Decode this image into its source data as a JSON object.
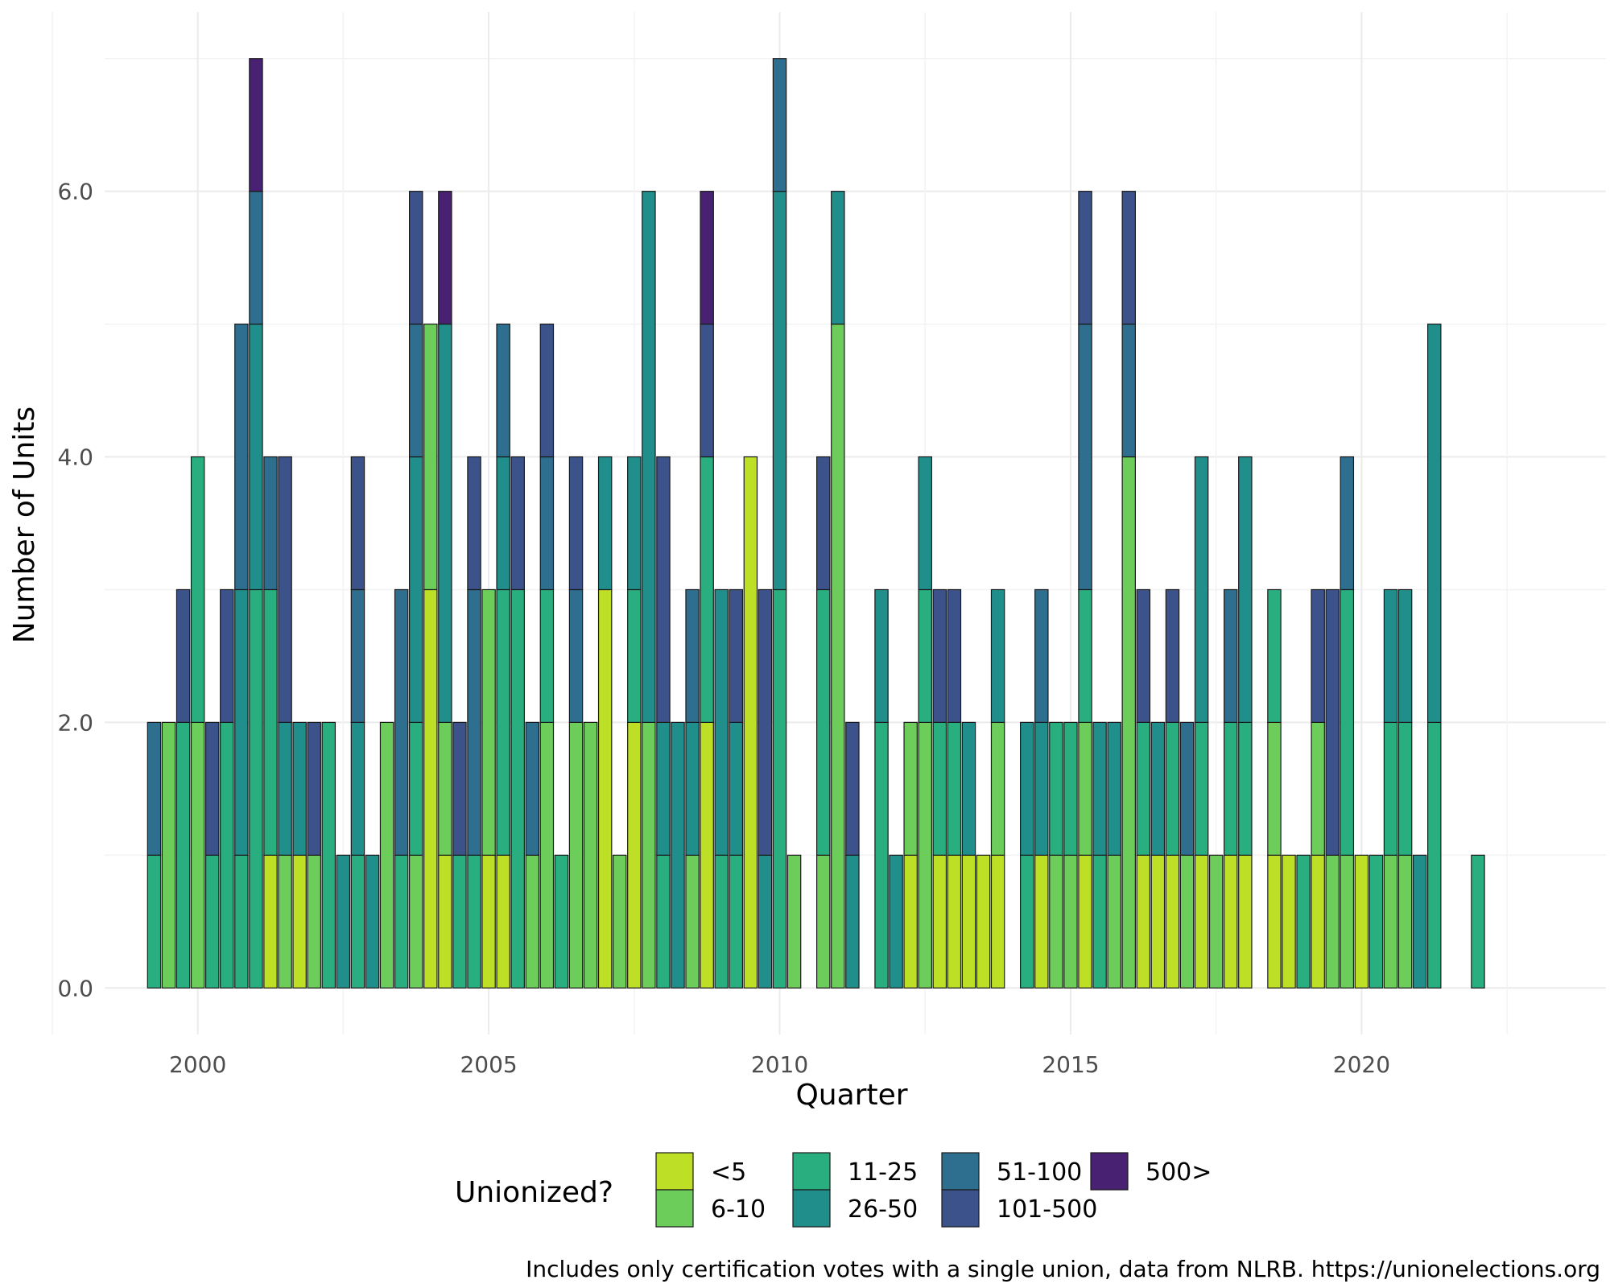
{
  "chart_data": {
    "type": "bar",
    "stacked": true,
    "xlabel": "Quarter",
    "ylabel": "Number of Units",
    "ylim": [
      -0.35,
      7.35
    ],
    "xlim": [
      1998.4,
      2024.2
    ],
    "y_ticks": [
      0,
      2,
      4,
      6
    ],
    "y_tick_labels": [
      "0.0",
      "2.0",
      "4.0",
      "6.0"
    ],
    "x_ticks": [
      2000,
      2005,
      2010,
      2015,
      2020
    ],
    "x_tick_labels": [
      "2000",
      "2005",
      "2010",
      "2015",
      "2020"
    ],
    "grid": true,
    "legend": {
      "title": "Unionized?",
      "placement": "bottom",
      "entries": [
        {
          "key": "lt5",
          "label": "<5",
          "color": "#bddf26"
        },
        {
          "key": "s6_10",
          "label": "6-10",
          "color": "#6ccd5a"
        },
        {
          "key": "s11_25",
          "label": "11-25",
          "color": "#29af7f"
        },
        {
          "key": "s26_50",
          "label": "26-50",
          "color": "#208f8c"
        },
        {
          "key": "s51_100",
          "label": "51-100",
          "color": "#2e6e8e"
        },
        {
          "key": "s101_500",
          "label": "101-500",
          "color": "#3b528b"
        },
        {
          "key": "gt500",
          "label": "500>",
          "color": "#482173"
        }
      ]
    },
    "caption": "Includes only certification votes with a single union, data from NLRB. https://unionelections.org",
    "bars": [
      {
        "x": 1999.25,
        "segments": [
          [
            "s11_25",
            1
          ],
          [
            "s51_100",
            1
          ]
        ]
      },
      {
        "x": 1999.5,
        "segments": [
          [
            "s6_10",
            2
          ]
        ]
      },
      {
        "x": 1999.75,
        "segments": [
          [
            "s11_25",
            2
          ],
          [
            "s101_500",
            1
          ]
        ]
      },
      {
        "x": 2000.0,
        "segments": [
          [
            "s6_10",
            2
          ],
          [
            "s11_25",
            2
          ]
        ]
      },
      {
        "x": 2000.25,
        "segments": [
          [
            "s11_25",
            1
          ],
          [
            "s101_500",
            1
          ]
        ]
      },
      {
        "x": 2000.5,
        "segments": [
          [
            "s11_25",
            2
          ],
          [
            "s101_500",
            1
          ]
        ]
      },
      {
        "x": 2000.75,
        "segments": [
          [
            "s11_25",
            1
          ],
          [
            "s26_50",
            2
          ],
          [
            "s51_100",
            2
          ]
        ]
      },
      {
        "x": 2001.0,
        "segments": [
          [
            "s11_25",
            3
          ],
          [
            "s26_50",
            2
          ],
          [
            "s51_100",
            1
          ],
          [
            "gt500",
            1
          ]
        ]
      },
      {
        "x": 2001.25,
        "segments": [
          [
            "lt5",
            1
          ],
          [
            "s11_25",
            2
          ],
          [
            "s51_100",
            1
          ]
        ]
      },
      {
        "x": 2001.5,
        "segments": [
          [
            "s6_10",
            1
          ],
          [
            "s26_50",
            1
          ],
          [
            "s101_500",
            2
          ]
        ]
      },
      {
        "x": 2001.75,
        "segments": [
          [
            "lt5",
            1
          ],
          [
            "s26_50",
            1
          ]
        ]
      },
      {
        "x": 2002.0,
        "segments": [
          [
            "s6_10",
            1
          ],
          [
            "s101_500",
            1
          ]
        ]
      },
      {
        "x": 2002.25,
        "segments": [
          [
            "s11_25",
            2
          ]
        ]
      },
      {
        "x": 2002.5,
        "segments": [
          [
            "s26_50",
            1
          ]
        ]
      },
      {
        "x": 2002.75,
        "segments": [
          [
            "s11_25",
            1
          ],
          [
            "s26_50",
            1
          ],
          [
            "s51_100",
            1
          ],
          [
            "s101_500",
            1
          ]
        ]
      },
      {
        "x": 2003.0,
        "segments": [
          [
            "s26_50",
            1
          ]
        ]
      },
      {
        "x": 2003.25,
        "segments": [
          [
            "s6_10",
            2
          ]
        ]
      },
      {
        "x": 2003.5,
        "segments": [
          [
            "s11_25",
            1
          ],
          [
            "s51_100",
            2
          ]
        ]
      },
      {
        "x": 2003.75,
        "segments": [
          [
            "s6_10",
            1
          ],
          [
            "s11_25",
            1
          ],
          [
            "s26_50",
            2
          ],
          [
            "s51_100",
            1
          ],
          [
            "s101_500",
            1
          ]
        ]
      },
      {
        "x": 2004.0,
        "segments": [
          [
            "lt5",
            3
          ],
          [
            "s6_10",
            2
          ]
        ]
      },
      {
        "x": 2004.25,
        "segments": [
          [
            "lt5",
            1
          ],
          [
            "s6_10",
            1
          ],
          [
            "s26_50",
            3
          ],
          [
            "gt500",
            1
          ]
        ]
      },
      {
        "x": 2004.5,
        "segments": [
          [
            "s11_25",
            1
          ],
          [
            "s101_500",
            1
          ]
        ]
      },
      {
        "x": 2004.75,
        "segments": [
          [
            "s11_25",
            1
          ],
          [
            "s51_100",
            2
          ],
          [
            "s101_500",
            1
          ]
        ]
      },
      {
        "x": 2005.0,
        "segments": [
          [
            "lt5",
            1
          ],
          [
            "s6_10",
            2
          ]
        ]
      },
      {
        "x": 2005.25,
        "segments": [
          [
            "lt5",
            1
          ],
          [
            "s11_25",
            2
          ],
          [
            "s26_50",
            1
          ],
          [
            "s51_100",
            1
          ]
        ]
      },
      {
        "x": 2005.5,
        "segments": [
          [
            "s11_25",
            3
          ],
          [
            "s101_500",
            1
          ]
        ]
      },
      {
        "x": 2005.75,
        "segments": [
          [
            "s6_10",
            1
          ],
          [
            "s51_100",
            1
          ]
        ]
      },
      {
        "x": 2006.0,
        "segments": [
          [
            "s6_10",
            2
          ],
          [
            "s11_25",
            1
          ],
          [
            "s51_100",
            1
          ],
          [
            "s101_500",
            1
          ]
        ]
      },
      {
        "x": 2006.25,
        "segments": [
          [
            "s11_25",
            1
          ]
        ]
      },
      {
        "x": 2006.5,
        "segments": [
          [
            "s6_10",
            2
          ],
          [
            "s51_100",
            1
          ],
          [
            "s101_500",
            1
          ]
        ]
      },
      {
        "x": 2006.75,
        "segments": [
          [
            "s6_10",
            2
          ]
        ]
      },
      {
        "x": 2007.0,
        "segments": [
          [
            "lt5",
            3
          ],
          [
            "s26_50",
            1
          ]
        ]
      },
      {
        "x": 2007.25,
        "segments": [
          [
            "s6_10",
            1
          ]
        ]
      },
      {
        "x": 2007.5,
        "segments": [
          [
            "lt5",
            2
          ],
          [
            "s11_25",
            1
          ],
          [
            "s26_50",
            1
          ]
        ]
      },
      {
        "x": 2007.75,
        "segments": [
          [
            "s6_10",
            2
          ],
          [
            "s26_50",
            4
          ]
        ]
      },
      {
        "x": 2008.0,
        "segments": [
          [
            "s11_25",
            1
          ],
          [
            "s26_50",
            1
          ],
          [
            "s101_500",
            2
          ]
        ]
      },
      {
        "x": 2008.25,
        "segments": [
          [
            "s26_50",
            2
          ]
        ]
      },
      {
        "x": 2008.5,
        "segments": [
          [
            "s6_10",
            1
          ],
          [
            "s26_50",
            1
          ],
          [
            "s51_100",
            1
          ]
        ]
      },
      {
        "x": 2008.75,
        "segments": [
          [
            "lt5",
            2
          ],
          [
            "s11_25",
            2
          ],
          [
            "s101_500",
            1
          ],
          [
            "gt500",
            1
          ]
        ]
      },
      {
        "x": 2009.0,
        "segments": [
          [
            "s11_25",
            1
          ],
          [
            "s26_50",
            2
          ]
        ]
      },
      {
        "x": 2009.25,
        "segments": [
          [
            "s11_25",
            1
          ],
          [
            "s26_50",
            1
          ],
          [
            "s101_500",
            1
          ]
        ]
      },
      {
        "x": 2009.5,
        "segments": [
          [
            "lt5",
            4
          ]
        ]
      },
      {
        "x": 2009.75,
        "segments": [
          [
            "s26_50",
            1
          ],
          [
            "s101_500",
            2
          ]
        ]
      },
      {
        "x": 2010.0,
        "segments": [
          [
            "s11_25",
            3
          ],
          [
            "s26_50",
            3
          ],
          [
            "s51_100",
            1
          ]
        ]
      },
      {
        "x": 2010.25,
        "segments": [
          [
            "s6_10",
            1
          ]
        ]
      },
      {
        "x": 2010.75,
        "segments": [
          [
            "s6_10",
            1
          ],
          [
            "s11_25",
            2
          ],
          [
            "s101_500",
            1
          ]
        ]
      },
      {
        "x": 2011.0,
        "segments": [
          [
            "s6_10",
            5
          ],
          [
            "s26_50",
            1
          ]
        ]
      },
      {
        "x": 2011.25,
        "segments": [
          [
            "s26_50",
            1
          ],
          [
            "s101_500",
            1
          ]
        ]
      },
      {
        "x": 2011.75,
        "segments": [
          [
            "s11_25",
            2
          ],
          [
            "s26_50",
            1
          ]
        ]
      },
      {
        "x": 2012.0,
        "segments": [
          [
            "s26_50",
            1
          ]
        ]
      },
      {
        "x": 2012.25,
        "segments": [
          [
            "lt5",
            1
          ],
          [
            "s6_10",
            1
          ]
        ]
      },
      {
        "x": 2012.5,
        "segments": [
          [
            "s6_10",
            2
          ],
          [
            "s11_25",
            1
          ],
          [
            "s26_50",
            1
          ]
        ]
      },
      {
        "x": 2012.75,
        "segments": [
          [
            "lt5",
            1
          ],
          [
            "s11_25",
            1
          ],
          [
            "s101_500",
            1
          ]
        ]
      },
      {
        "x": 2013.0,
        "segments": [
          [
            "lt5",
            1
          ],
          [
            "s11_25",
            1
          ],
          [
            "s101_500",
            1
          ]
        ]
      },
      {
        "x": 2013.25,
        "segments": [
          [
            "lt5",
            1
          ],
          [
            "s26_50",
            1
          ]
        ]
      },
      {
        "x": 2013.5,
        "segments": [
          [
            "lt5",
            1
          ]
        ]
      },
      {
        "x": 2013.75,
        "segments": [
          [
            "lt5",
            1
          ],
          [
            "s6_10",
            1
          ],
          [
            "s26_50",
            1
          ]
        ]
      },
      {
        "x": 2014.25,
        "segments": [
          [
            "s11_25",
            1
          ],
          [
            "s26_50",
            1
          ]
        ]
      },
      {
        "x": 2014.5,
        "segments": [
          [
            "lt5",
            1
          ],
          [
            "s26_50",
            1
          ],
          [
            "s51_100",
            1
          ]
        ]
      },
      {
        "x": 2014.75,
        "segments": [
          [
            "s6_10",
            1
          ],
          [
            "s11_25",
            1
          ]
        ]
      },
      {
        "x": 2015.0,
        "segments": [
          [
            "s6_10",
            1
          ],
          [
            "s11_25",
            1
          ]
        ]
      },
      {
        "x": 2015.25,
        "segments": [
          [
            "lt5",
            1
          ],
          [
            "s6_10",
            1
          ],
          [
            "s11_25",
            1
          ],
          [
            "s51_100",
            2
          ],
          [
            "s101_500",
            1
          ]
        ]
      },
      {
        "x": 2015.5,
        "segments": [
          [
            "s11_25",
            1
          ],
          [
            "s26_50",
            1
          ]
        ]
      },
      {
        "x": 2015.75,
        "segments": [
          [
            "s6_10",
            1
          ],
          [
            "s26_50",
            1
          ]
        ]
      },
      {
        "x": 2016.0,
        "segments": [
          [
            "s6_10",
            4
          ],
          [
            "s51_100",
            1
          ],
          [
            "s101_500",
            1
          ]
        ]
      },
      {
        "x": 2016.25,
        "segments": [
          [
            "lt5",
            1
          ],
          [
            "s11_25",
            1
          ],
          [
            "s101_500",
            1
          ]
        ]
      },
      {
        "x": 2016.5,
        "segments": [
          [
            "lt5",
            1
          ],
          [
            "s26_50",
            1
          ]
        ]
      },
      {
        "x": 2016.75,
        "segments": [
          [
            "lt5",
            1
          ],
          [
            "s11_25",
            1
          ],
          [
            "s101_500",
            1
          ]
        ]
      },
      {
        "x": 2017.0,
        "segments": [
          [
            "s6_10",
            1
          ],
          [
            "s51_100",
            1
          ]
        ]
      },
      {
        "x": 2017.25,
        "segments": [
          [
            "lt5",
            1
          ],
          [
            "s11_25",
            1
          ],
          [
            "s26_50",
            2
          ]
        ]
      },
      {
        "x": 2017.5,
        "segments": [
          [
            "s6_10",
            1
          ]
        ]
      },
      {
        "x": 2017.75,
        "segments": [
          [
            "lt5",
            1
          ],
          [
            "s11_25",
            1
          ],
          [
            "s51_100",
            1
          ]
        ]
      },
      {
        "x": 2018.0,
        "segments": [
          [
            "lt5",
            1
          ],
          [
            "s11_25",
            1
          ],
          [
            "s26_50",
            2
          ]
        ]
      },
      {
        "x": 2018.5,
        "segments": [
          [
            "lt5",
            1
          ],
          [
            "s6_10",
            1
          ],
          [
            "s11_25",
            1
          ]
        ]
      },
      {
        "x": 2018.75,
        "segments": [
          [
            "lt5",
            1
          ]
        ]
      },
      {
        "x": 2019.0,
        "segments": [
          [
            "s11_25",
            1
          ]
        ]
      },
      {
        "x": 2019.25,
        "segments": [
          [
            "lt5",
            1
          ],
          [
            "s6_10",
            1
          ],
          [
            "s101_500",
            1
          ]
        ]
      },
      {
        "x": 2019.5,
        "segments": [
          [
            "s6_10",
            1
          ],
          [
            "s101_500",
            2
          ]
        ]
      },
      {
        "x": 2019.75,
        "segments": [
          [
            "s6_10",
            1
          ],
          [
            "s11_25",
            2
          ],
          [
            "s51_100",
            1
          ]
        ]
      },
      {
        "x": 2020.0,
        "segments": [
          [
            "lt5",
            1
          ]
        ]
      },
      {
        "x": 2020.25,
        "segments": [
          [
            "s11_25",
            1
          ]
        ]
      },
      {
        "x": 2020.5,
        "segments": [
          [
            "s6_10",
            1
          ],
          [
            "s11_25",
            1
          ],
          [
            "s26_50",
            1
          ]
        ]
      },
      {
        "x": 2020.75,
        "segments": [
          [
            "s6_10",
            1
          ],
          [
            "s11_25",
            1
          ],
          [
            "s26_50",
            1
          ]
        ]
      },
      {
        "x": 2021.0,
        "segments": [
          [
            "s26_50",
            1
          ]
        ]
      },
      {
        "x": 2021.25,
        "segments": [
          [
            "s11_25",
            2
          ],
          [
            "s26_50",
            3
          ]
        ]
      },
      {
        "x": 2022.0,
        "segments": [
          [
            "s11_25",
            1
          ]
        ]
      }
    ]
  }
}
